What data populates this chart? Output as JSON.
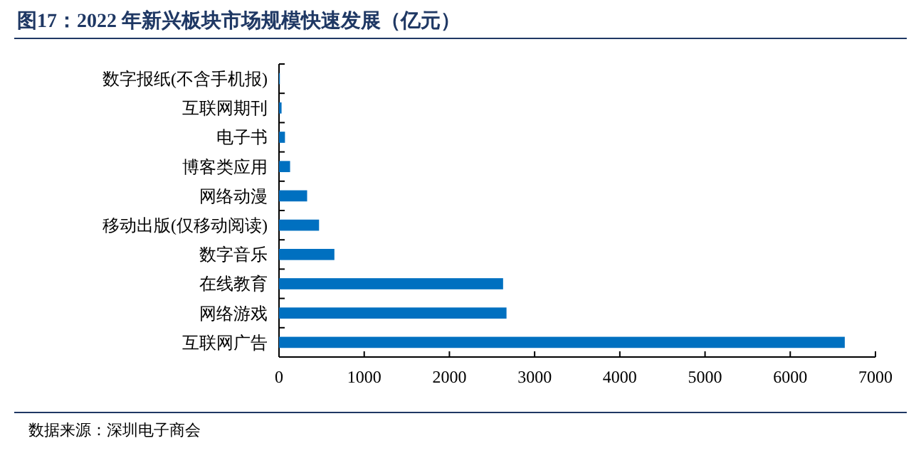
{
  "chart_data": {
    "type": "bar",
    "orientation": "horizontal",
    "title": "图17：2022 年新兴板块市场规模快速发展（亿元）",
    "categories": [
      "数字报纸(不含手机报)",
      "互联网期刊",
      "电子书",
      "博客类应用",
      "网络动漫",
      "移动出版(仅移动阅读)",
      "数字音乐",
      "在线教育",
      "网络游戏",
      "互联网广告"
    ],
    "values": [
      10,
      30,
      70,
      130,
      330,
      470,
      650,
      2630,
      2670,
      6640
    ],
    "color": "#0070c0",
    "xlim": [
      0,
      7000
    ],
    "xticks": [
      0,
      1000,
      2000,
      3000,
      4000,
      5000,
      6000,
      7000
    ],
    "annotations": [
      "数据来源：深圳电子商会"
    ]
  }
}
